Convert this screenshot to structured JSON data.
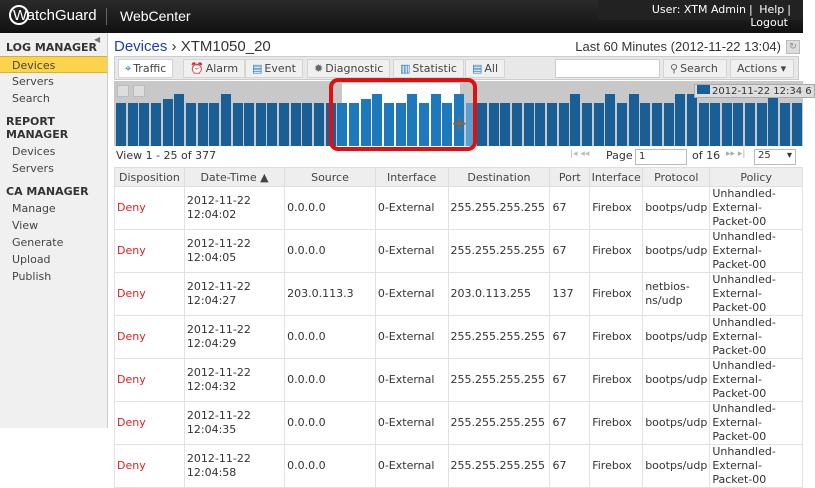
{
  "header": {
    "brand": "WatchGuard",
    "app": "WebCenter",
    "user": "User: XTM Admin",
    "help": "Help",
    "logout": "Logout"
  },
  "sidebar": [
    {
      "title": "LOG MANAGER",
      "items": [
        "Devices",
        "Servers",
        "Search"
      ]
    },
    {
      "title": "REPORT MANAGER",
      "items": [
        "Devices",
        "Servers"
      ]
    },
    {
      "title": "CA MANAGER",
      "items": [
        "Manage",
        "View",
        "Generate",
        "Upload",
        "Publish"
      ]
    }
  ],
  "breadcrumb": {
    "root": "Devices",
    "sep": "›",
    "current": "XTM1050_20"
  },
  "range": "Last 60 Minutes (2012-11-22 13:04)",
  "tabs": [
    "Traffic",
    "Alarm",
    "Event",
    "Diagnostic",
    "Statistic",
    "All"
  ],
  "search_label": "Search",
  "actions_label": "Actions",
  "chart": {
    "legend": "2012-11-22 12:34 6",
    "selected_range": [
      19,
      29
    ],
    "hover_index": 30,
    "levels": [
      5,
      5,
      5,
      5,
      6,
      7,
      5,
      5,
      5,
      7,
      5,
      5,
      5,
      5,
      5,
      5,
      5,
      5,
      5,
      5,
      5,
      6,
      7,
      5,
      5,
      7,
      5,
      7,
      5,
      7,
      5,
      5,
      5,
      5,
      5,
      5,
      5,
      5,
      5,
      7,
      5,
      5,
      7,
      5,
      7,
      5,
      5,
      5,
      7,
      7,
      5,
      5,
      5,
      5,
      5,
      5,
      7,
      5,
      5
    ]
  },
  "pager": {
    "view": "View 1 - 25 of 377",
    "page_label": "Page",
    "page": "1",
    "of": "of 16",
    "per_page": "25"
  },
  "table": {
    "columns": [
      "Disposition",
      "Date-Time ▲",
      "Source",
      "Interface",
      "Destination",
      "Port",
      "Interface",
      "Protocol",
      "Policy"
    ],
    "rows": [
      [
        "Deny",
        "2012-11-22 12:04:02",
        "0.0.0.0",
        "0-External",
        "255.255.255.255",
        "67",
        "Firebox",
        "bootps/udp",
        "Unhandled-External-Packet-00"
      ],
      [
        "Deny",
        "2012-11-22 12:04:05",
        "0.0.0.0",
        "0-External",
        "255.255.255.255",
        "67",
        "Firebox",
        "bootps/udp",
        "Unhandled-External-Packet-00"
      ],
      [
        "Deny",
        "2012-11-22 12:04:27",
        "203.0.113.3",
        "0-External",
        "203.0.113.255",
        "137",
        "Firebox",
        "netbios-ns/udp",
        "Unhandled-External-Packet-00"
      ],
      [
        "Deny",
        "2012-11-22 12:04:29",
        "0.0.0.0",
        "0-External",
        "255.255.255.255",
        "67",
        "Firebox",
        "bootps/udp",
        "Unhandled-External-Packet-00"
      ],
      [
        "Deny",
        "2012-11-22 12:04:32",
        "0.0.0.0",
        "0-External",
        "255.255.255.255",
        "67",
        "Firebox",
        "bootps/udp",
        "Unhandled-External-Packet-00"
      ],
      [
        "Deny",
        "2012-11-22 12:04:35",
        "0.0.0.0",
        "0-External",
        "255.255.255.255",
        "67",
        "Firebox",
        "bootps/udp",
        "Unhandled-External-Packet-00"
      ],
      [
        "Deny",
        "2012-11-22 12:04:58",
        "0.0.0.0",
        "0-External",
        "255.255.255.255",
        "67",
        "Firebox",
        "bootps/udp",
        "Unhandled-External-Packet-00"
      ]
    ]
  }
}
